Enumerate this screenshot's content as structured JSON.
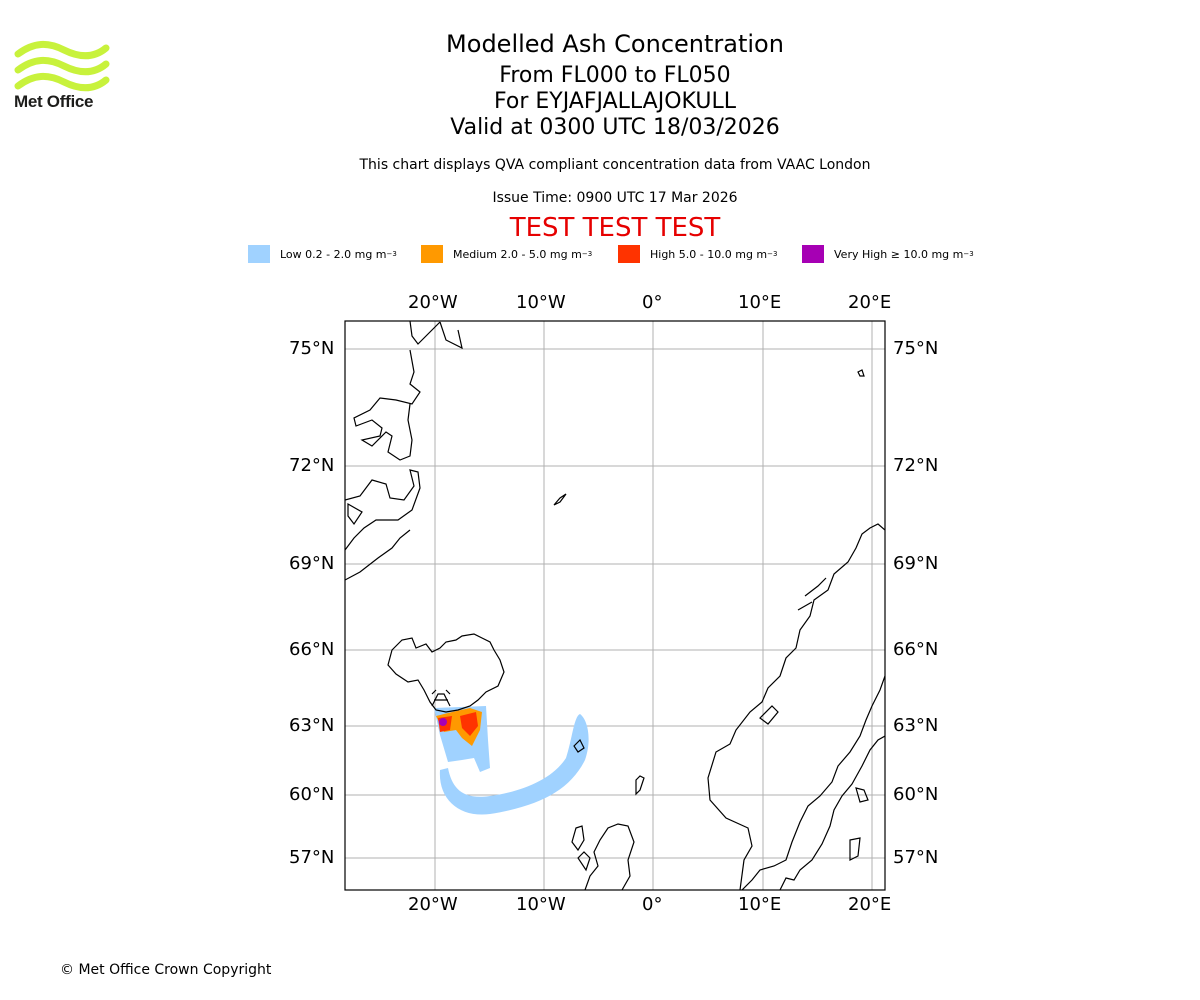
{
  "logo": {
    "text": "Met Office",
    "color": "#c8f23c"
  },
  "title": {
    "main": "Modelled Ash Concentration",
    "levels": "From FL000 to FL050",
    "volcano": "For EYJAFJALLAJOKULL",
    "valid": "Valid at 0300 UTC 18/03/2026"
  },
  "subtitle": "This chart displays QVA compliant concentration data from VAAC London",
  "issue_time": "Issue Time: 0900 UTC 17 Mar 2026",
  "test_banner": "TEST TEST TEST",
  "legend": [
    {
      "label": "Low 0.2 - 2.0 mg m",
      "color": "#a0d2ff"
    },
    {
      "label": "Medium 2.0 - 5.0 mg m",
      "color": "#ff9900"
    },
    {
      "label": "High 5.0 - 10.0 mg m",
      "color": "#ff3300"
    },
    {
      "label": "Very High ≥ 10.0 mg m",
      "color": "#a600b4"
    }
  ],
  "legend_unit_exp": "−3",
  "map": {
    "lon_labels": [
      "20°W",
      "10°W",
      "0°",
      "10°E",
      "20°E"
    ],
    "lat_labels": [
      "75°N",
      "72°N",
      "69°N",
      "66°N",
      "63°N",
      "60°N",
      "57°N"
    ]
  },
  "copyright": "© Met Office Crown Copyright"
}
